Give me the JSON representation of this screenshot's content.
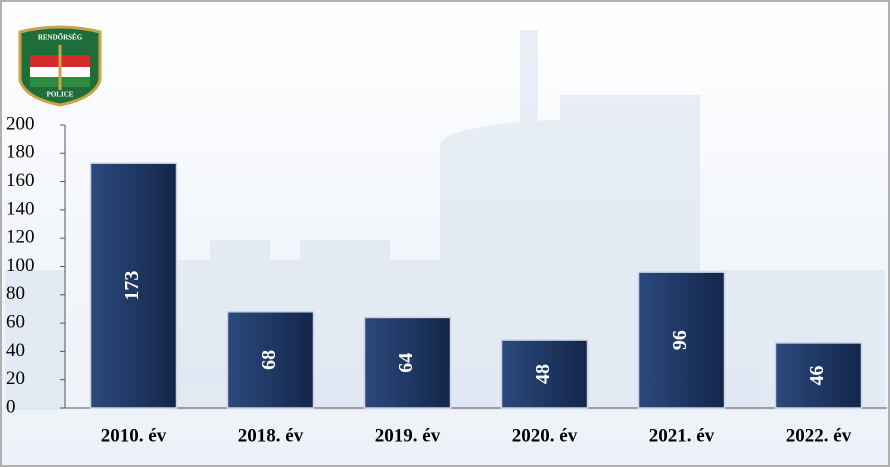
{
  "logo": {
    "top": "RENDŐRSÉG",
    "bottom": "POLICE"
  },
  "chart_data": {
    "type": "bar",
    "categories": [
      "2010. év",
      "2018. év",
      "2019. év",
      "2020. év",
      "2021. év",
      "2022. év"
    ],
    "values": [
      173,
      68,
      64,
      48,
      96,
      46
    ],
    "color": "#1f3864",
    "ylim": [
      0,
      200
    ],
    "yticks": [
      0,
      20,
      40,
      60,
      80,
      100,
      120,
      140,
      160,
      180,
      200
    ]
  }
}
